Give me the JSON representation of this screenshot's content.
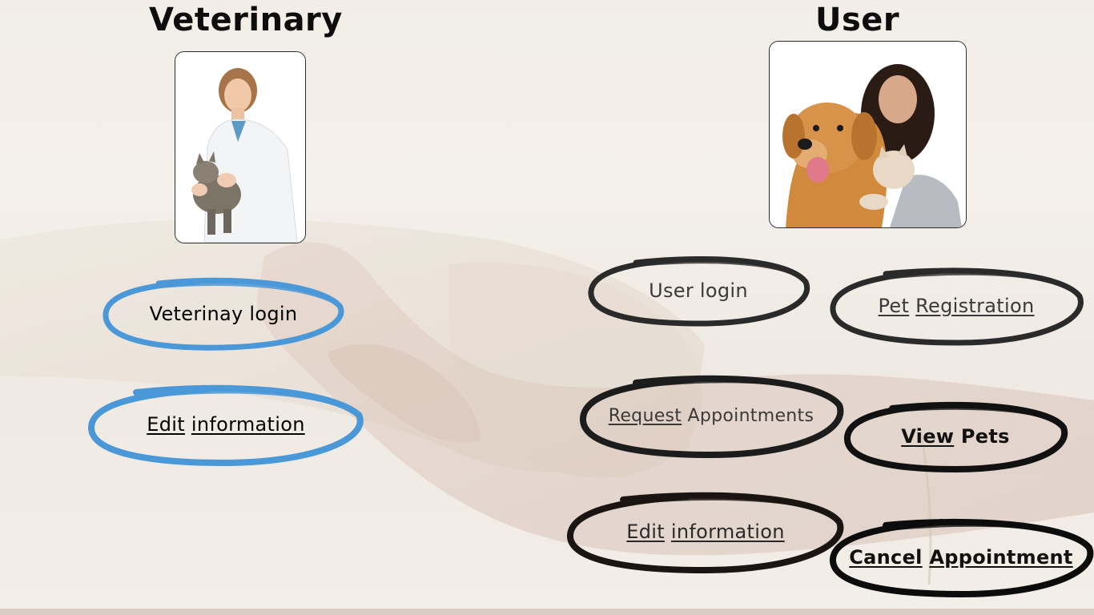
{
  "veterinary": {
    "title": "Veterinary",
    "login_label": "Veterinay login",
    "edit": {
      "word1": "Edit",
      "word2": "information"
    }
  },
  "user": {
    "title": "User",
    "login_label": "User login",
    "pet_registration": {
      "word1": "Pet",
      "word2": "Registration"
    },
    "request_appointments": {
      "word1": "Request",
      "word2": "Appointments"
    },
    "view_pets": {
      "word1": "View",
      "word2": "Pets"
    },
    "edit": {
      "word1": "Edit",
      "word2": "information"
    },
    "cancel_appointment": {
      "word1": "Cancel",
      "word2": "Appointment"
    }
  },
  "colors": {
    "vet_ring": "#4a98d8",
    "user_ring": "#1c1c1c",
    "text": "#111111"
  }
}
